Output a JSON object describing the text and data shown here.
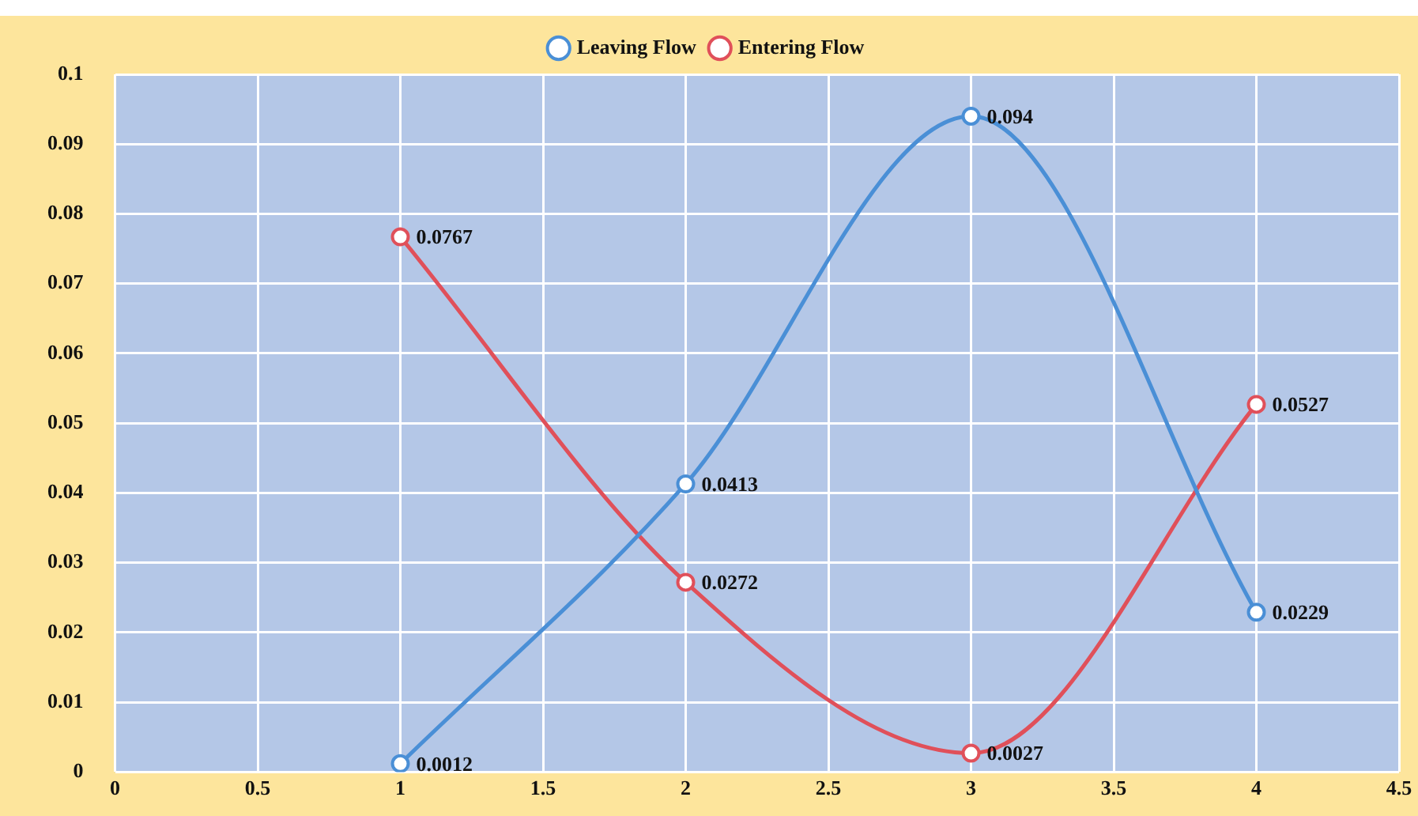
{
  "chart_data": {
    "type": "line",
    "x": [
      1,
      2,
      3,
      4
    ],
    "series": [
      {
        "name": "Leaving Flow",
        "color": "#4a8fd6",
        "values": [
          0.0012,
          0.0413,
          0.094,
          0.0229
        ]
      },
      {
        "name": "Entering Flow",
        "color": "#e0505a",
        "values": [
          0.0767,
          0.0272,
          0.0027,
          0.0527
        ]
      }
    ],
    "xlim": [
      0,
      4.5
    ],
    "xticks": [
      0,
      0.5,
      1,
      1.5,
      2,
      2.5,
      3,
      3.5,
      4,
      4.5
    ],
    "ylim": [
      0,
      0.1
    ],
    "yticks": [
      0,
      0.01,
      0.02,
      0.03,
      0.04,
      0.05,
      0.06,
      0.07,
      0.08,
      0.09,
      0.1
    ],
    "grid": true,
    "legend": "top",
    "marker": "circle",
    "data_labels": true
  }
}
